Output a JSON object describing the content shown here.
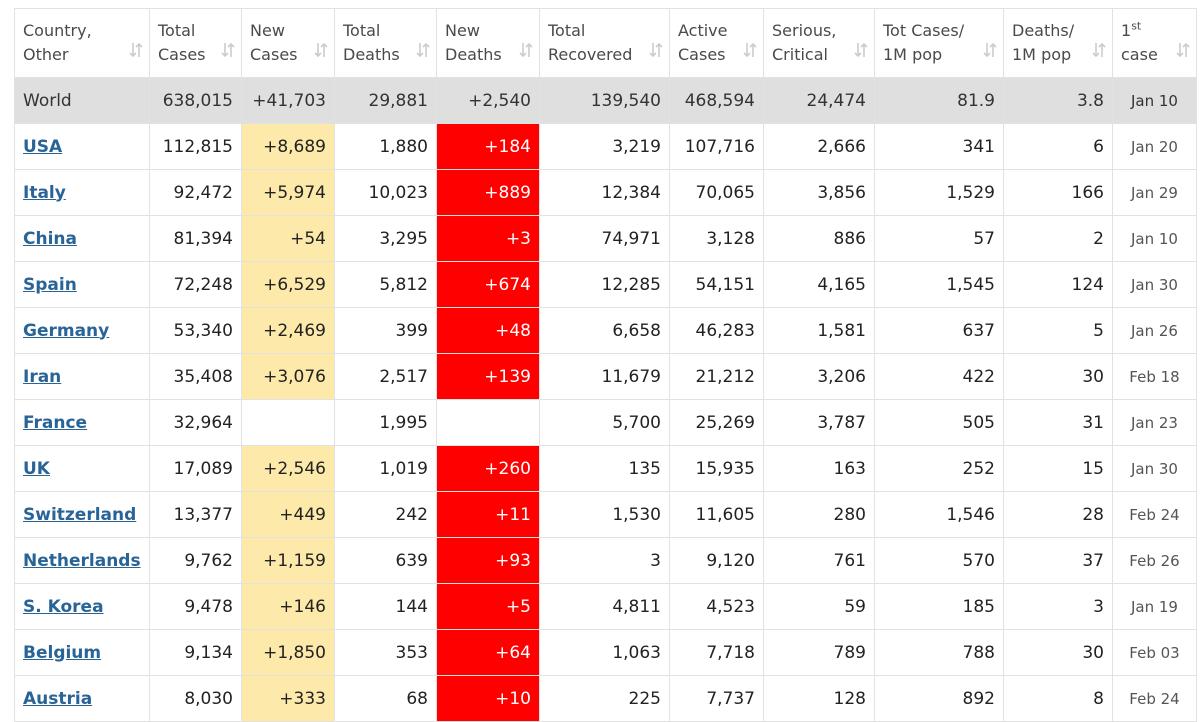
{
  "table": {
    "headers": [
      {
        "line1": "Country,",
        "line2": "Other"
      },
      {
        "line1": "Total",
        "line2": "Cases"
      },
      {
        "line1": "New",
        "line2": "Cases"
      },
      {
        "line1": "Total",
        "line2": "Deaths"
      },
      {
        "line1": "New",
        "line2": "Deaths"
      },
      {
        "line1": "Total",
        "line2": "Recovered"
      },
      {
        "line1": "Active",
        "line2": "Cases"
      },
      {
        "line1": "Serious,",
        "line2": "Critical"
      },
      {
        "line1": "Tot Cases/",
        "line2": "1M pop"
      },
      {
        "line1": "Deaths/",
        "line2": "1M pop"
      },
      {
        "line1": "1",
        "sup": "st",
        "line2": "case"
      }
    ],
    "rows": [
      [
        "World",
        "638,015",
        "+41,703",
        "29,881",
        "+2,540",
        "139,540",
        "468,594",
        "24,474",
        "81.9",
        "3.8",
        "Jan 10"
      ],
      [
        "USA",
        "112,815",
        "+8,689",
        "1,880",
        "+184",
        "3,219",
        "107,716",
        "2,666",
        "341",
        "6",
        "Jan 20"
      ],
      [
        "Italy",
        "92,472",
        "+5,974",
        "10,023",
        "+889",
        "12,384",
        "70,065",
        "3,856",
        "1,529",
        "166",
        "Jan 29"
      ],
      [
        "China",
        "81,394",
        "+54",
        "3,295",
        "+3",
        "74,971",
        "3,128",
        "886",
        "57",
        "2",
        "Jan 10"
      ],
      [
        "Spain",
        "72,248",
        "+6,529",
        "5,812",
        "+674",
        "12,285",
        "54,151",
        "4,165",
        "1,545",
        "124",
        "Jan 30"
      ],
      [
        "Germany",
        "53,340",
        "+2,469",
        "399",
        "+48",
        "6,658",
        "46,283",
        "1,581",
        "637",
        "5",
        "Jan 26"
      ],
      [
        "Iran",
        "35,408",
        "+3,076",
        "2,517",
        "+139",
        "11,679",
        "21,212",
        "3,206",
        "422",
        "30",
        "Feb 18"
      ],
      [
        "France",
        "32,964",
        null,
        "1,995",
        null,
        "5,700",
        "25,269",
        "3,787",
        "505",
        "31",
        "Jan 23"
      ],
      [
        "UK",
        "17,089",
        "+2,546",
        "1,019",
        "+260",
        "135",
        "15,935",
        "163",
        "252",
        "15",
        "Jan 30"
      ],
      [
        "Switzerland",
        "13,377",
        "+449",
        "242",
        "+11",
        "1,530",
        "11,605",
        "280",
        "1,546",
        "28",
        "Feb 24"
      ],
      [
        "Netherlands",
        "9,762",
        "+1,159",
        "639",
        "+93",
        "3",
        "9,120",
        "761",
        "570",
        "37",
        "Feb 26"
      ],
      [
        "S. Korea",
        "9,478",
        "+146",
        "144",
        "+5",
        "4,811",
        "4,523",
        "59",
        "185",
        "3",
        "Jan 19"
      ],
      [
        "Belgium",
        "9,134",
        "+1,850",
        "353",
        "+64",
        "1,063",
        "7,718",
        "789",
        "788",
        "30",
        "Feb 03"
      ],
      [
        "Austria",
        "8,030",
        "+333",
        "68",
        "+10",
        "225",
        "7,737",
        "128",
        "892",
        "8",
        "Feb 24"
      ]
    ]
  }
}
